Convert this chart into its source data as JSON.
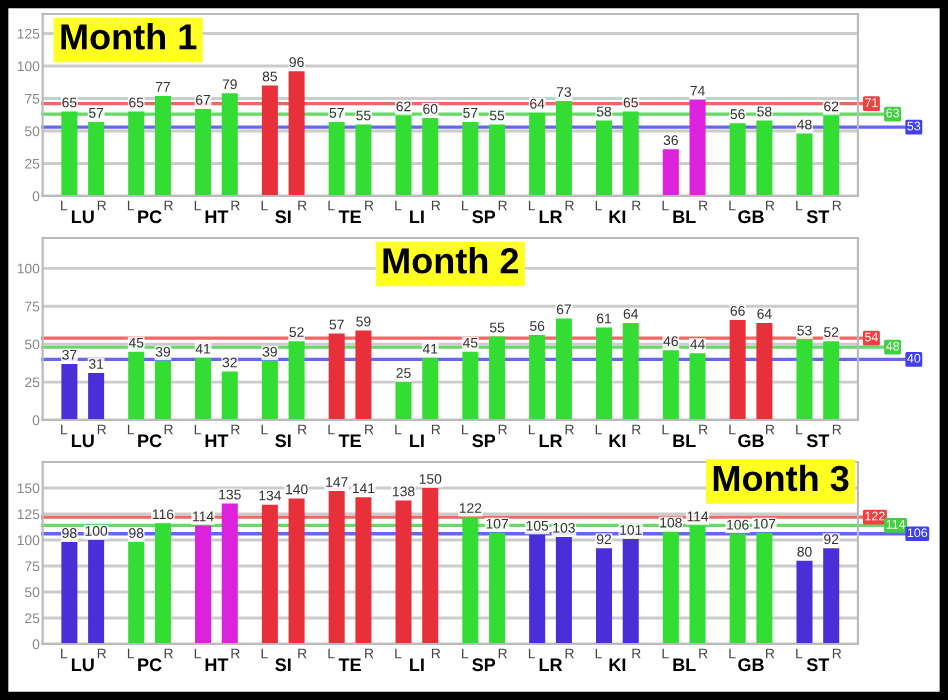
{
  "chart_data": [
    {
      "type": "bar",
      "title": "Month 1",
      "categories": [
        "LU",
        "PC",
        "HT",
        "SI",
        "TE",
        "LI",
        "SP",
        "LR",
        "KI",
        "BL",
        "GB",
        "ST"
      ],
      "series": [
        {
          "name": "L",
          "values": [
            65,
            65,
            67,
            85,
            57,
            62,
            57,
            64,
            58,
            36,
            56,
            48
          ],
          "colors": [
            "#33dd33",
            "#33dd33",
            "#33dd33",
            "#e8303a",
            "#33dd33",
            "#33dd33",
            "#33dd33",
            "#33dd33",
            "#33dd33",
            "#dd22dd",
            "#33dd33",
            "#33dd33"
          ]
        },
        {
          "name": "R",
          "values": [
            57,
            77,
            79,
            96,
            55,
            60,
            55,
            73,
            65,
            74,
            58,
            62
          ],
          "colors": [
            "#33dd33",
            "#33dd33",
            "#33dd33",
            "#e8303a",
            "#33dd33",
            "#33dd33",
            "#33dd33",
            "#33dd33",
            "#33dd33",
            "#dd22dd",
            "#33dd33",
            "#33dd33"
          ]
        }
      ],
      "ylim": [
        0,
        140
      ],
      "yticks": [
        0,
        25,
        50,
        75,
        100,
        125
      ],
      "grid": "y",
      "data_labels": true,
      "ref_lines": [
        {
          "axis": "y",
          "value": 71,
          "label": "71",
          "color": "#f04040"
        },
        {
          "axis": "y",
          "value": 63,
          "label": "63",
          "color": "#40d040"
        },
        {
          "axis": "y",
          "value": 53,
          "label": "53",
          "color": "#4040f0"
        }
      ]
    },
    {
      "type": "bar",
      "title": "Month 2",
      "categories": [
        "LU",
        "PC",
        "HT",
        "SI",
        "TE",
        "LI",
        "SP",
        "LR",
        "KI",
        "BL",
        "GB",
        "ST"
      ],
      "series": [
        {
          "name": "L",
          "values": [
            37,
            45,
            41,
            39,
            57,
            25,
            45,
            56,
            61,
            46,
            66,
            53
          ],
          "colors": [
            "#4a2fd8",
            "#33dd33",
            "#33dd33",
            "#33dd33",
            "#e8303a",
            "#33dd33",
            "#33dd33",
            "#33dd33",
            "#33dd33",
            "#33dd33",
            "#e8303a",
            "#33dd33"
          ]
        },
        {
          "name": "R",
          "values": [
            31,
            39,
            32,
            52,
            59,
            41,
            55,
            67,
            64,
            44,
            64,
            52
          ],
          "colors": [
            "#4a2fd8",
            "#33dd33",
            "#33dd33",
            "#33dd33",
            "#e8303a",
            "#33dd33",
            "#33dd33",
            "#33dd33",
            "#33dd33",
            "#33dd33",
            "#e8303a",
            "#33dd33"
          ]
        }
      ],
      "ylim": [
        0,
        120
      ],
      "yticks": [
        0,
        25,
        50,
        75,
        100
      ],
      "grid": "y",
      "data_labels": true,
      "ref_lines": [
        {
          "axis": "y",
          "value": 54,
          "label": "54",
          "color": "#f04040"
        },
        {
          "axis": "y",
          "value": 48,
          "label": "48",
          "color": "#40d040"
        },
        {
          "axis": "y",
          "value": 40,
          "label": "40",
          "color": "#4040f0"
        }
      ]
    },
    {
      "type": "bar",
      "title": "Month 3",
      "categories": [
        "LU",
        "PC",
        "HT",
        "SI",
        "TE",
        "LI",
        "SP",
        "LR",
        "KI",
        "BL",
        "GB",
        "ST"
      ],
      "series": [
        {
          "name": "L",
          "values": [
            98,
            98,
            114,
            134,
            147,
            138,
            122,
            105,
            92,
            108,
            106,
            80
          ],
          "colors": [
            "#4a2fd8",
            "#33dd33",
            "#dd22dd",
            "#e8303a",
            "#e8303a",
            "#e8303a",
            "#33dd33",
            "#4a2fd8",
            "#4a2fd8",
            "#33dd33",
            "#33dd33",
            "#4a2fd8"
          ]
        },
        {
          "name": "R",
          "values": [
            100,
            116,
            135,
            140,
            141,
            150,
            107,
            103,
            101,
            114,
            107,
            92
          ],
          "colors": [
            "#4a2fd8",
            "#33dd33",
            "#dd22dd",
            "#e8303a",
            "#e8303a",
            "#e8303a",
            "#33dd33",
            "#4a2fd8",
            "#4a2fd8",
            "#33dd33",
            "#33dd33",
            "#4a2fd8"
          ]
        }
      ],
      "ylim": [
        0,
        175
      ],
      "yticks": [
        0,
        25,
        50,
        75,
        100,
        125,
        150
      ],
      "grid": "y",
      "data_labels": true,
      "ref_lines": [
        {
          "axis": "y",
          "value": 122,
          "label": "122",
          "color": "#f04040"
        },
        {
          "axis": "y",
          "value": 114,
          "label": "114",
          "color": "#40d040"
        },
        {
          "axis": "y",
          "value": 106,
          "label": "106",
          "color": "#4040f0"
        }
      ]
    }
  ]
}
